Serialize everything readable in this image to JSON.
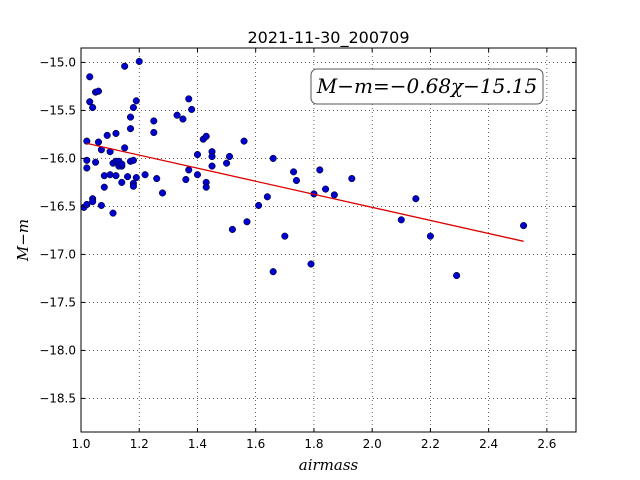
{
  "chart_data": {
    "type": "scatter",
    "title": "2021-11-30_200709",
    "xlabel": "airmass",
    "ylabel": "M−m",
    "xlim": [
      1.0,
      2.7
    ],
    "ylim": [
      -18.85,
      -14.85
    ],
    "xticks": [
      1.0,
      1.2,
      1.4,
      1.6,
      1.8,
      2.0,
      2.2,
      2.4,
      2.6
    ],
    "xtick_labels": [
      "1.0",
      "1.2",
      "1.4",
      "1.6",
      "1.8",
      "2.0",
      "2.2",
      "2.4",
      "2.6"
    ],
    "yticks": [
      -15.0,
      -15.5,
      -16.0,
      -16.5,
      -17.0,
      -17.5,
      -18.0,
      -18.5
    ],
    "ytick_labels": [
      "−15.0",
      "−15.5",
      "−16.0",
      "−16.5",
      "−17.0",
      "−17.5",
      "−18.0",
      "−18.5"
    ],
    "grid": true,
    "annotation": "M−m=−0.68χ−15.15",
    "marker_color": "#0000cc",
    "fit_color": "#dd0000",
    "fit": {
      "slope": -0.68,
      "intercept": -15.15,
      "x_range": [
        1.02,
        2.52
      ]
    },
    "series": [
      {
        "points": [
          [
            1.01,
            -16.51
          ],
          [
            1.02,
            -16.48
          ],
          [
            1.02,
            -16.1
          ],
          [
            1.02,
            -16.02
          ],
          [
            1.02,
            -15.82
          ],
          [
            1.03,
            -15.41
          ],
          [
            1.03,
            -15.15
          ],
          [
            1.04,
            -15.47
          ],
          [
            1.04,
            -16.42
          ],
          [
            1.04,
            -16.45
          ],
          [
            1.05,
            -16.04
          ],
          [
            1.05,
            -15.31
          ],
          [
            1.06,
            -15.83
          ],
          [
            1.06,
            -15.3
          ],
          [
            1.07,
            -16.49
          ],
          [
            1.07,
            -15.91
          ],
          [
            1.08,
            -16.18
          ],
          [
            1.08,
            -16.3
          ],
          [
            1.09,
            -15.76
          ],
          [
            1.1,
            -16.17
          ],
          [
            1.1,
            -15.93
          ],
          [
            1.11,
            -16.57
          ],
          [
            1.11,
            -16.05
          ],
          [
            1.12,
            -15.74
          ],
          [
            1.12,
            -16.03
          ],
          [
            1.12,
            -16.18
          ],
          [
            1.13,
            -16.08
          ],
          [
            1.13,
            -16.03
          ],
          [
            1.14,
            -16.25
          ],
          [
            1.14,
            -16.08
          ],
          [
            1.14,
            -16.06
          ],
          [
            1.15,
            -15.89
          ],
          [
            1.15,
            -15.04
          ],
          [
            1.16,
            -16.19
          ],
          [
            1.17,
            -16.03
          ],
          [
            1.17,
            -15.69
          ],
          [
            1.17,
            -15.57
          ],
          [
            1.18,
            -16.26
          ],
          [
            1.18,
            -16.29
          ],
          [
            1.18,
            -16.02
          ],
          [
            1.18,
            -15.47
          ],
          [
            1.19,
            -15.4
          ],
          [
            1.19,
            -16.2
          ],
          [
            1.2,
            -14.99
          ],
          [
            1.22,
            -16.17
          ],
          [
            1.25,
            -15.73
          ],
          [
            1.25,
            -15.61
          ],
          [
            1.26,
            -16.21
          ],
          [
            1.28,
            -16.36
          ],
          [
            1.33,
            -15.55
          ],
          [
            1.35,
            -15.59
          ],
          [
            1.36,
            -16.22
          ],
          [
            1.37,
            -16.12
          ],
          [
            1.37,
            -15.38
          ],
          [
            1.38,
            -15.49
          ],
          [
            1.4,
            -15.96
          ],
          [
            1.4,
            -16.17
          ],
          [
            1.42,
            -15.8
          ],
          [
            1.43,
            -15.77
          ],
          [
            1.43,
            -16.25
          ],
          [
            1.43,
            -16.3
          ],
          [
            1.45,
            -15.93
          ],
          [
            1.45,
            -15.98
          ],
          [
            1.45,
            -16.08
          ],
          [
            1.5,
            -16.05
          ],
          [
            1.51,
            -15.98
          ],
          [
            1.52,
            -16.74
          ],
          [
            1.56,
            -15.82
          ],
          [
            1.57,
            -16.66
          ],
          [
            1.61,
            -16.49
          ],
          [
            1.64,
            -16.4
          ],
          [
            1.66,
            -16.0
          ],
          [
            1.66,
            -17.18
          ],
          [
            1.7,
            -16.81
          ],
          [
            1.73,
            -16.14
          ],
          [
            1.74,
            -16.23
          ],
          [
            1.79,
            -17.1
          ],
          [
            1.8,
            -16.37
          ],
          [
            1.82,
            -16.12
          ],
          [
            1.84,
            -16.32
          ],
          [
            1.87,
            -16.38
          ],
          [
            1.93,
            -16.21
          ],
          [
            2.1,
            -16.64
          ],
          [
            2.15,
            -16.42
          ],
          [
            2.2,
            -16.81
          ],
          [
            2.29,
            -17.22
          ],
          [
            2.52,
            -16.7
          ]
        ]
      }
    ]
  }
}
